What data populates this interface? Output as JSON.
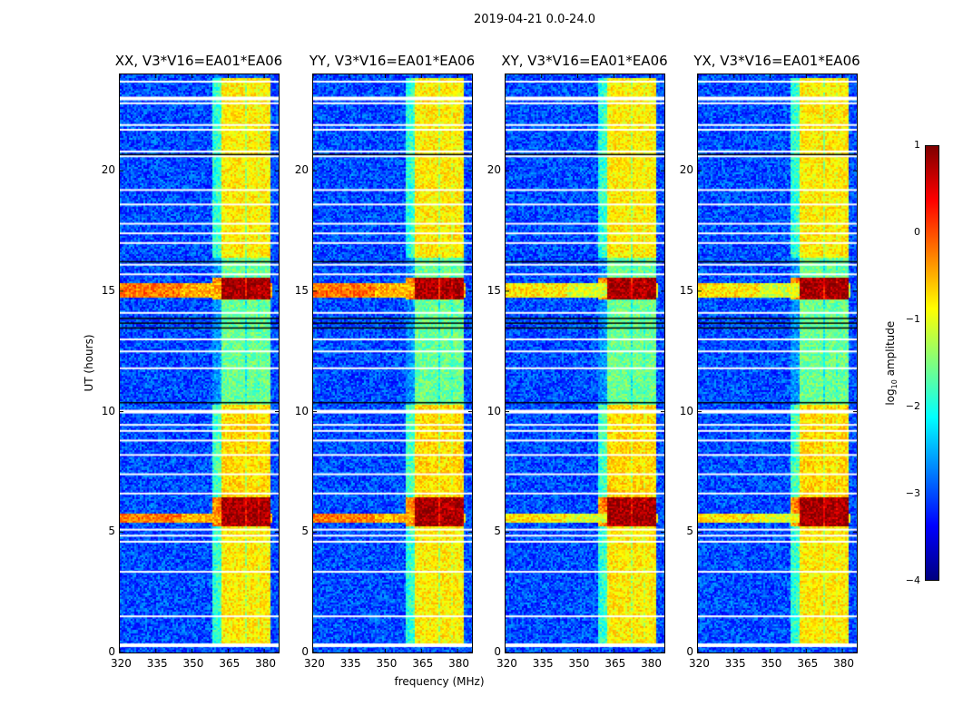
{
  "chart_data": {
    "type": "heatmap",
    "title": "2019-04-21 0.0-24.0",
    "xlabel": "frequency (MHz)",
    "ylabel": "UT (hours)",
    "xlim": [
      320,
      386
    ],
    "ylim": [
      0,
      24
    ],
    "xticks": [
      320,
      335,
      350,
      365,
      380
    ],
    "yticks": [
      0,
      5,
      10,
      15,
      20
    ],
    "panels": [
      {
        "title": "XX, V3*V16=EA01*EA06",
        "rfi_level": 1.0
      },
      {
        "title": "YY, V3*V16=EA01*EA06",
        "rfi_level": 1.0
      },
      {
        "title": "XY, V3*V16=EA01*EA06",
        "rfi_level": 0.3
      },
      {
        "title": "YX, V3*V16=EA01*EA06",
        "rfi_level": 0.3
      }
    ],
    "background_log_amplitude": -3.0,
    "bright_subbands_mhz": [
      [
        362,
        366.8
      ],
      [
        367.5,
        372
      ],
      [
        372.5,
        377
      ],
      [
        377.5,
        382
      ]
    ],
    "band_log_amplitude": [
      {
        "t0": 0.3,
        "t1": 5.3,
        "value": -0.8
      },
      {
        "t0": 5.3,
        "t1": 6.5,
        "value": 0.8
      },
      {
        "t0": 6.5,
        "t1": 10.3,
        "value": -0.7
      },
      {
        "t0": 10.3,
        "t1": 14.7,
        "value": -1.6
      },
      {
        "t0": 14.7,
        "t1": 15.6,
        "value": 0.8
      },
      {
        "t0": 15.6,
        "t1": 16.4,
        "value": -1.6
      },
      {
        "t0": 16.4,
        "t1": 23.9,
        "value": -0.8
      }
    ],
    "broadband_rfi_hours": [
      [
        5.45,
        5.8
      ],
      [
        14.8,
        15.4
      ]
    ],
    "flagged_hours": [
      0.3,
      1.5,
      3.35,
      4.6,
      4.85,
      5.1,
      6.6,
      7.4,
      8.2,
      8.8,
      9.2,
      9.45,
      10.0,
      11.8,
      12.5,
      13.0,
      14.1,
      15.7,
      16.1,
      17.0,
      17.4,
      17.8,
      18.6,
      19.2,
      20.6,
      20.8,
      21.7,
      21.9,
      22.8,
      23.0,
      23.7
    ],
    "dark_hours": [
      10.4,
      13.5,
      13.7,
      13.9,
      16.25,
      20.7
    ],
    "colorbar": {
      "label": "log10 amplitude",
      "label_main": "log",
      "label_sub": "10",
      "label_rest": " amplitude",
      "range": [
        -4,
        1
      ],
      "ticks": [
        "1",
        "0",
        "−1",
        "−2",
        "−3",
        "−4"
      ]
    }
  }
}
